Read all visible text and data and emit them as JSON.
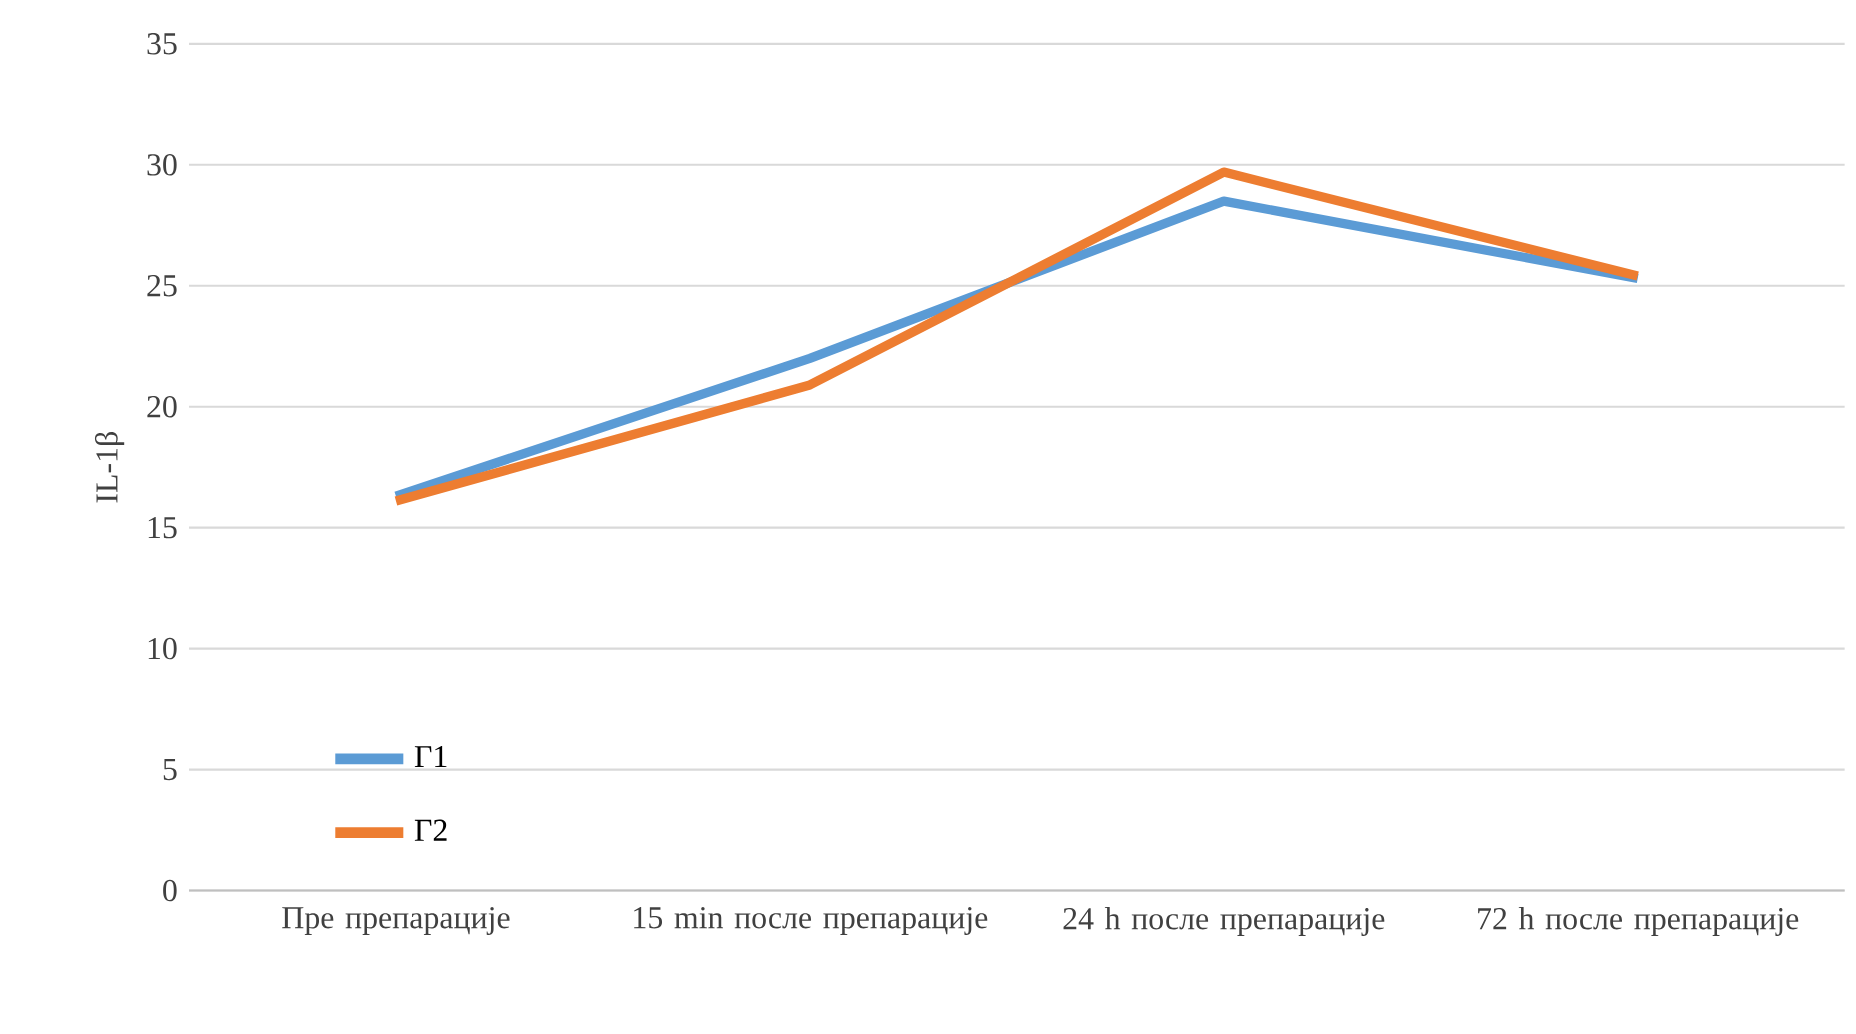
{
  "chart_data": {
    "type": "line",
    "ylabel": "IL-1β",
    "categories": [
      "Пре препарације",
      "15 min после препарације",
      "24 h после препарације",
      "72 h после препарације"
    ],
    "series": [
      {
        "name": "Г1",
        "color": "#5b9bd5",
        "values": [
          16.3,
          22.0,
          28.5,
          25.3
        ]
      },
      {
        "name": "Г2",
        "color": "#ed7d31",
        "values": [
          16.1,
          20.9,
          29.7,
          25.4
        ]
      }
    ],
    "ylim": [
      0,
      35
    ],
    "yticks": [
      0,
      5,
      10,
      15,
      20,
      25,
      30,
      35
    ],
    "grid": "y",
    "legend": "bottom left",
    "marker": "none",
    "line_style": "solid"
  }
}
